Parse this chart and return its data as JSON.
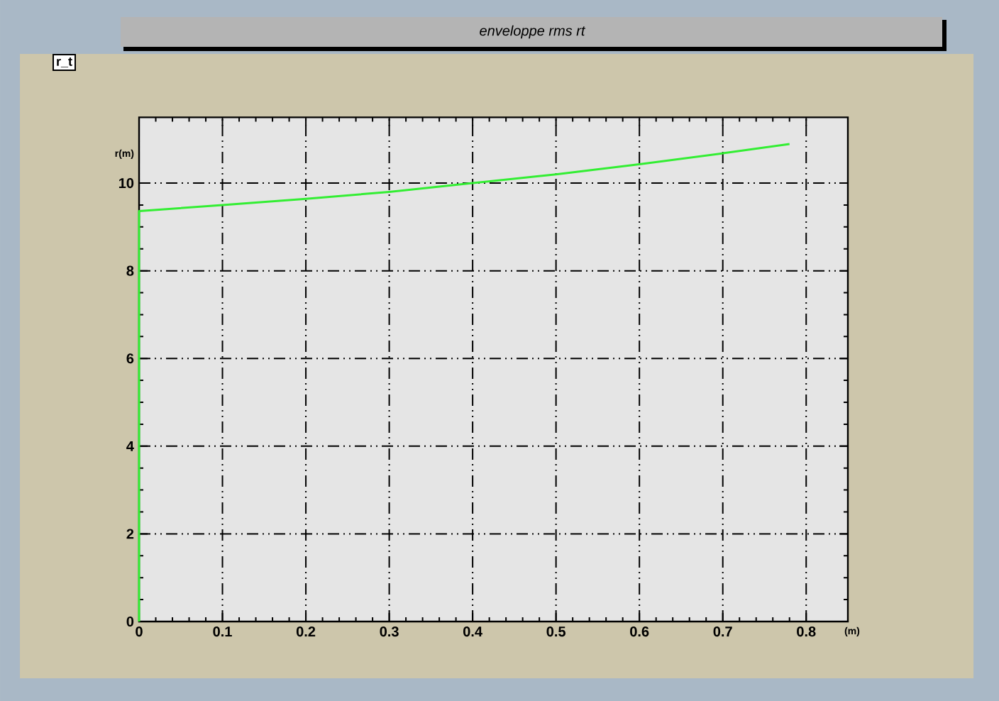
{
  "chart_data": {
    "type": "line",
    "title": "enveloppe rms rt",
    "xlabel": "(m)",
    "ylabel": "r(m)",
    "annotations": [
      "r_t"
    ],
    "x": [
      0,
      0,
      0.1,
      0.2,
      0.3,
      0.4,
      0.5,
      0.6,
      0.7,
      0.78
    ],
    "values": [
      0,
      9.36,
      9.5,
      9.64,
      9.8,
      10.0,
      10.2,
      10.43,
      10.68,
      10.89
    ],
    "color": "#33ee33",
    "xlim": [
      0,
      0.85
    ],
    "ylim": [
      0,
      11.5
    ],
    "xticks": [
      0,
      0.1,
      0.2,
      0.3,
      0.4,
      0.5,
      0.6,
      0.7,
      0.8
    ],
    "yticks": [
      0,
      2,
      4,
      6,
      8,
      10
    ],
    "grid": true
  }
}
